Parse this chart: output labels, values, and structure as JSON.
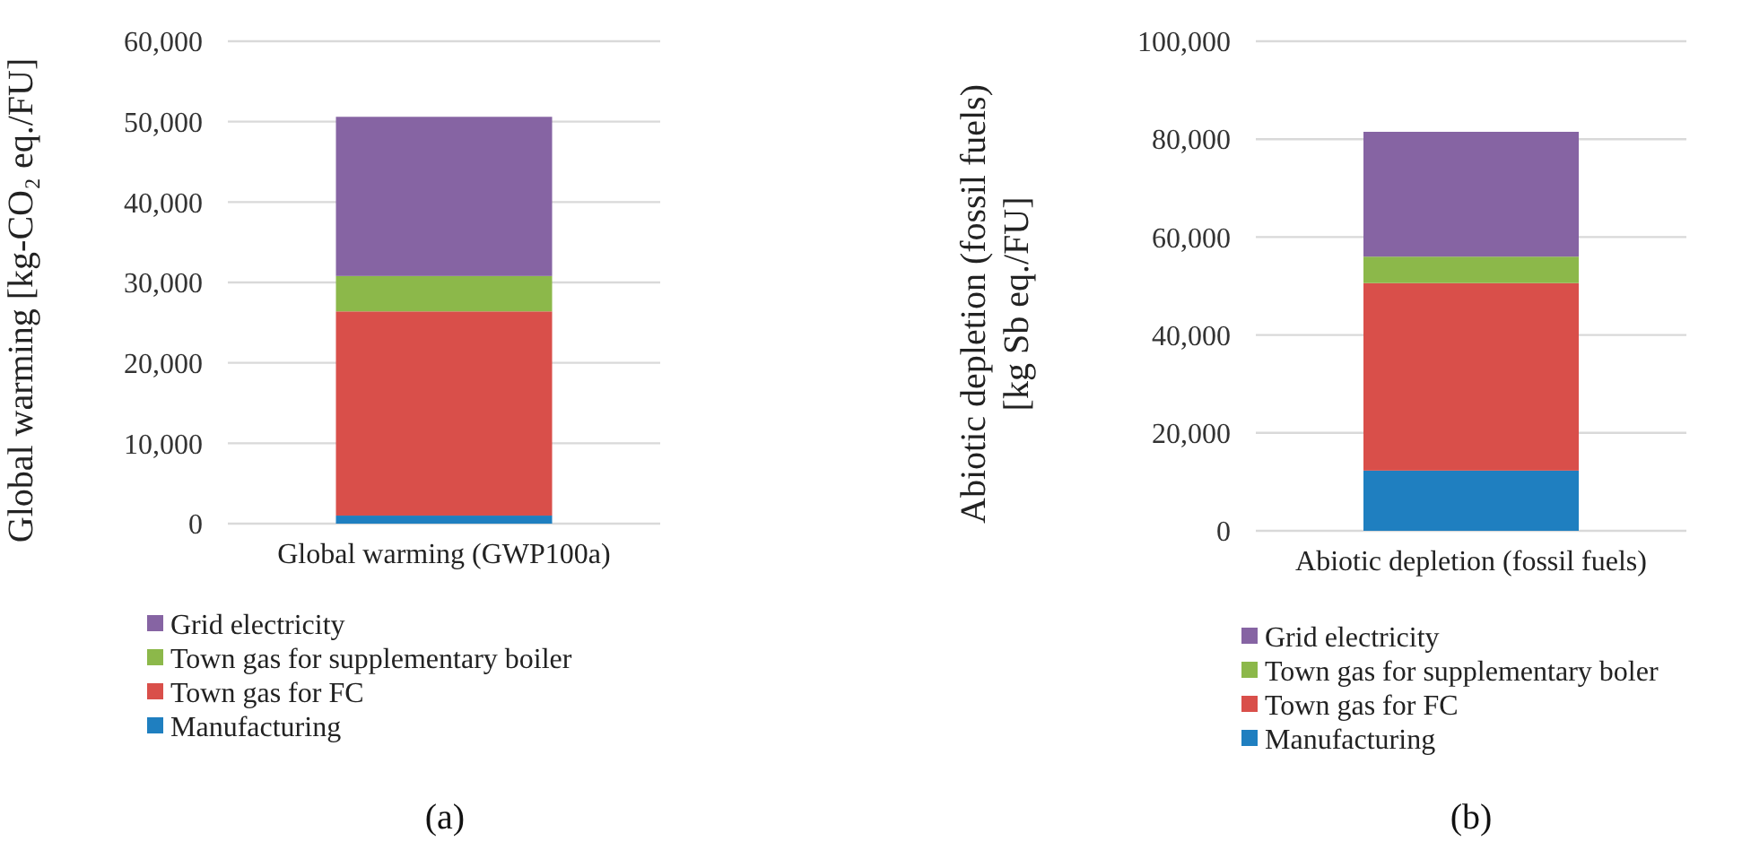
{
  "chart_data": [
    {
      "type": "bar",
      "title": "(a)",
      "ylabel": "Global warming [kg-CO₂ eq./FU]",
      "categories": [
        "Global warming (GWP100a)"
      ],
      "stacked": true,
      "ylim": [
        0,
        60000
      ],
      "yticks": [
        {
          "value": 0,
          "label": "0"
        },
        {
          "value": 10000,
          "label": "10,000"
        },
        {
          "value": 20000,
          "label": "20,000"
        },
        {
          "value": 30000,
          "label": "30,000"
        },
        {
          "value": 40000,
          "label": "40,000"
        },
        {
          "value": 50000,
          "label": "50,000"
        },
        {
          "value": 60000,
          "label": "60,000"
        }
      ],
      "grid": "y",
      "legend": "bottom",
      "series": [
        {
          "name": "Manufacturing",
          "color": "#1f7fc0",
          "values": [
            1000
          ]
        },
        {
          "name": "Town gas for FC",
          "color": "#d94f4a",
          "values": [
            25400
          ]
        },
        {
          "name": "Town gas for supplementary boiler",
          "color": "#8cb84a",
          "values": [
            4400
          ]
        },
        {
          "name": "Grid electricity",
          "color": "#8664a3",
          "values": [
            19800
          ]
        }
      ]
    },
    {
      "type": "bar",
      "title": "(b)",
      "ylabel": "Abiotic depletion (fossil fuels)\n[kg Sb eq./FU]",
      "categories": [
        "Abiotic depletion (fossil fuels)"
      ],
      "stacked": true,
      "ylim": [
        0,
        100000
      ],
      "yticks": [
        {
          "value": 0,
          "label": "0"
        },
        {
          "value": 20000,
          "label": "20,000"
        },
        {
          "value": 40000,
          "label": "40,000"
        },
        {
          "value": 60000,
          "label": "60,000"
        },
        {
          "value": 80000,
          "label": "80,000"
        },
        {
          "value": 100000,
          "label": "100,000"
        }
      ],
      "grid": "y",
      "legend": "bottom",
      "series": [
        {
          "name": "Manufacturing",
          "color": "#1f7fc0",
          "values": [
            12300
          ]
        },
        {
          "name": "Town gas for FC",
          "color": "#d94f4a",
          "values": [
            38300
          ]
        },
        {
          "name": "Town gas for supplementary boler",
          "color": "#8cb84a",
          "values": [
            5400
          ]
        },
        {
          "name": "Grid electricity",
          "color": "#8664a3",
          "values": [
            25500
          ]
        }
      ]
    }
  ]
}
